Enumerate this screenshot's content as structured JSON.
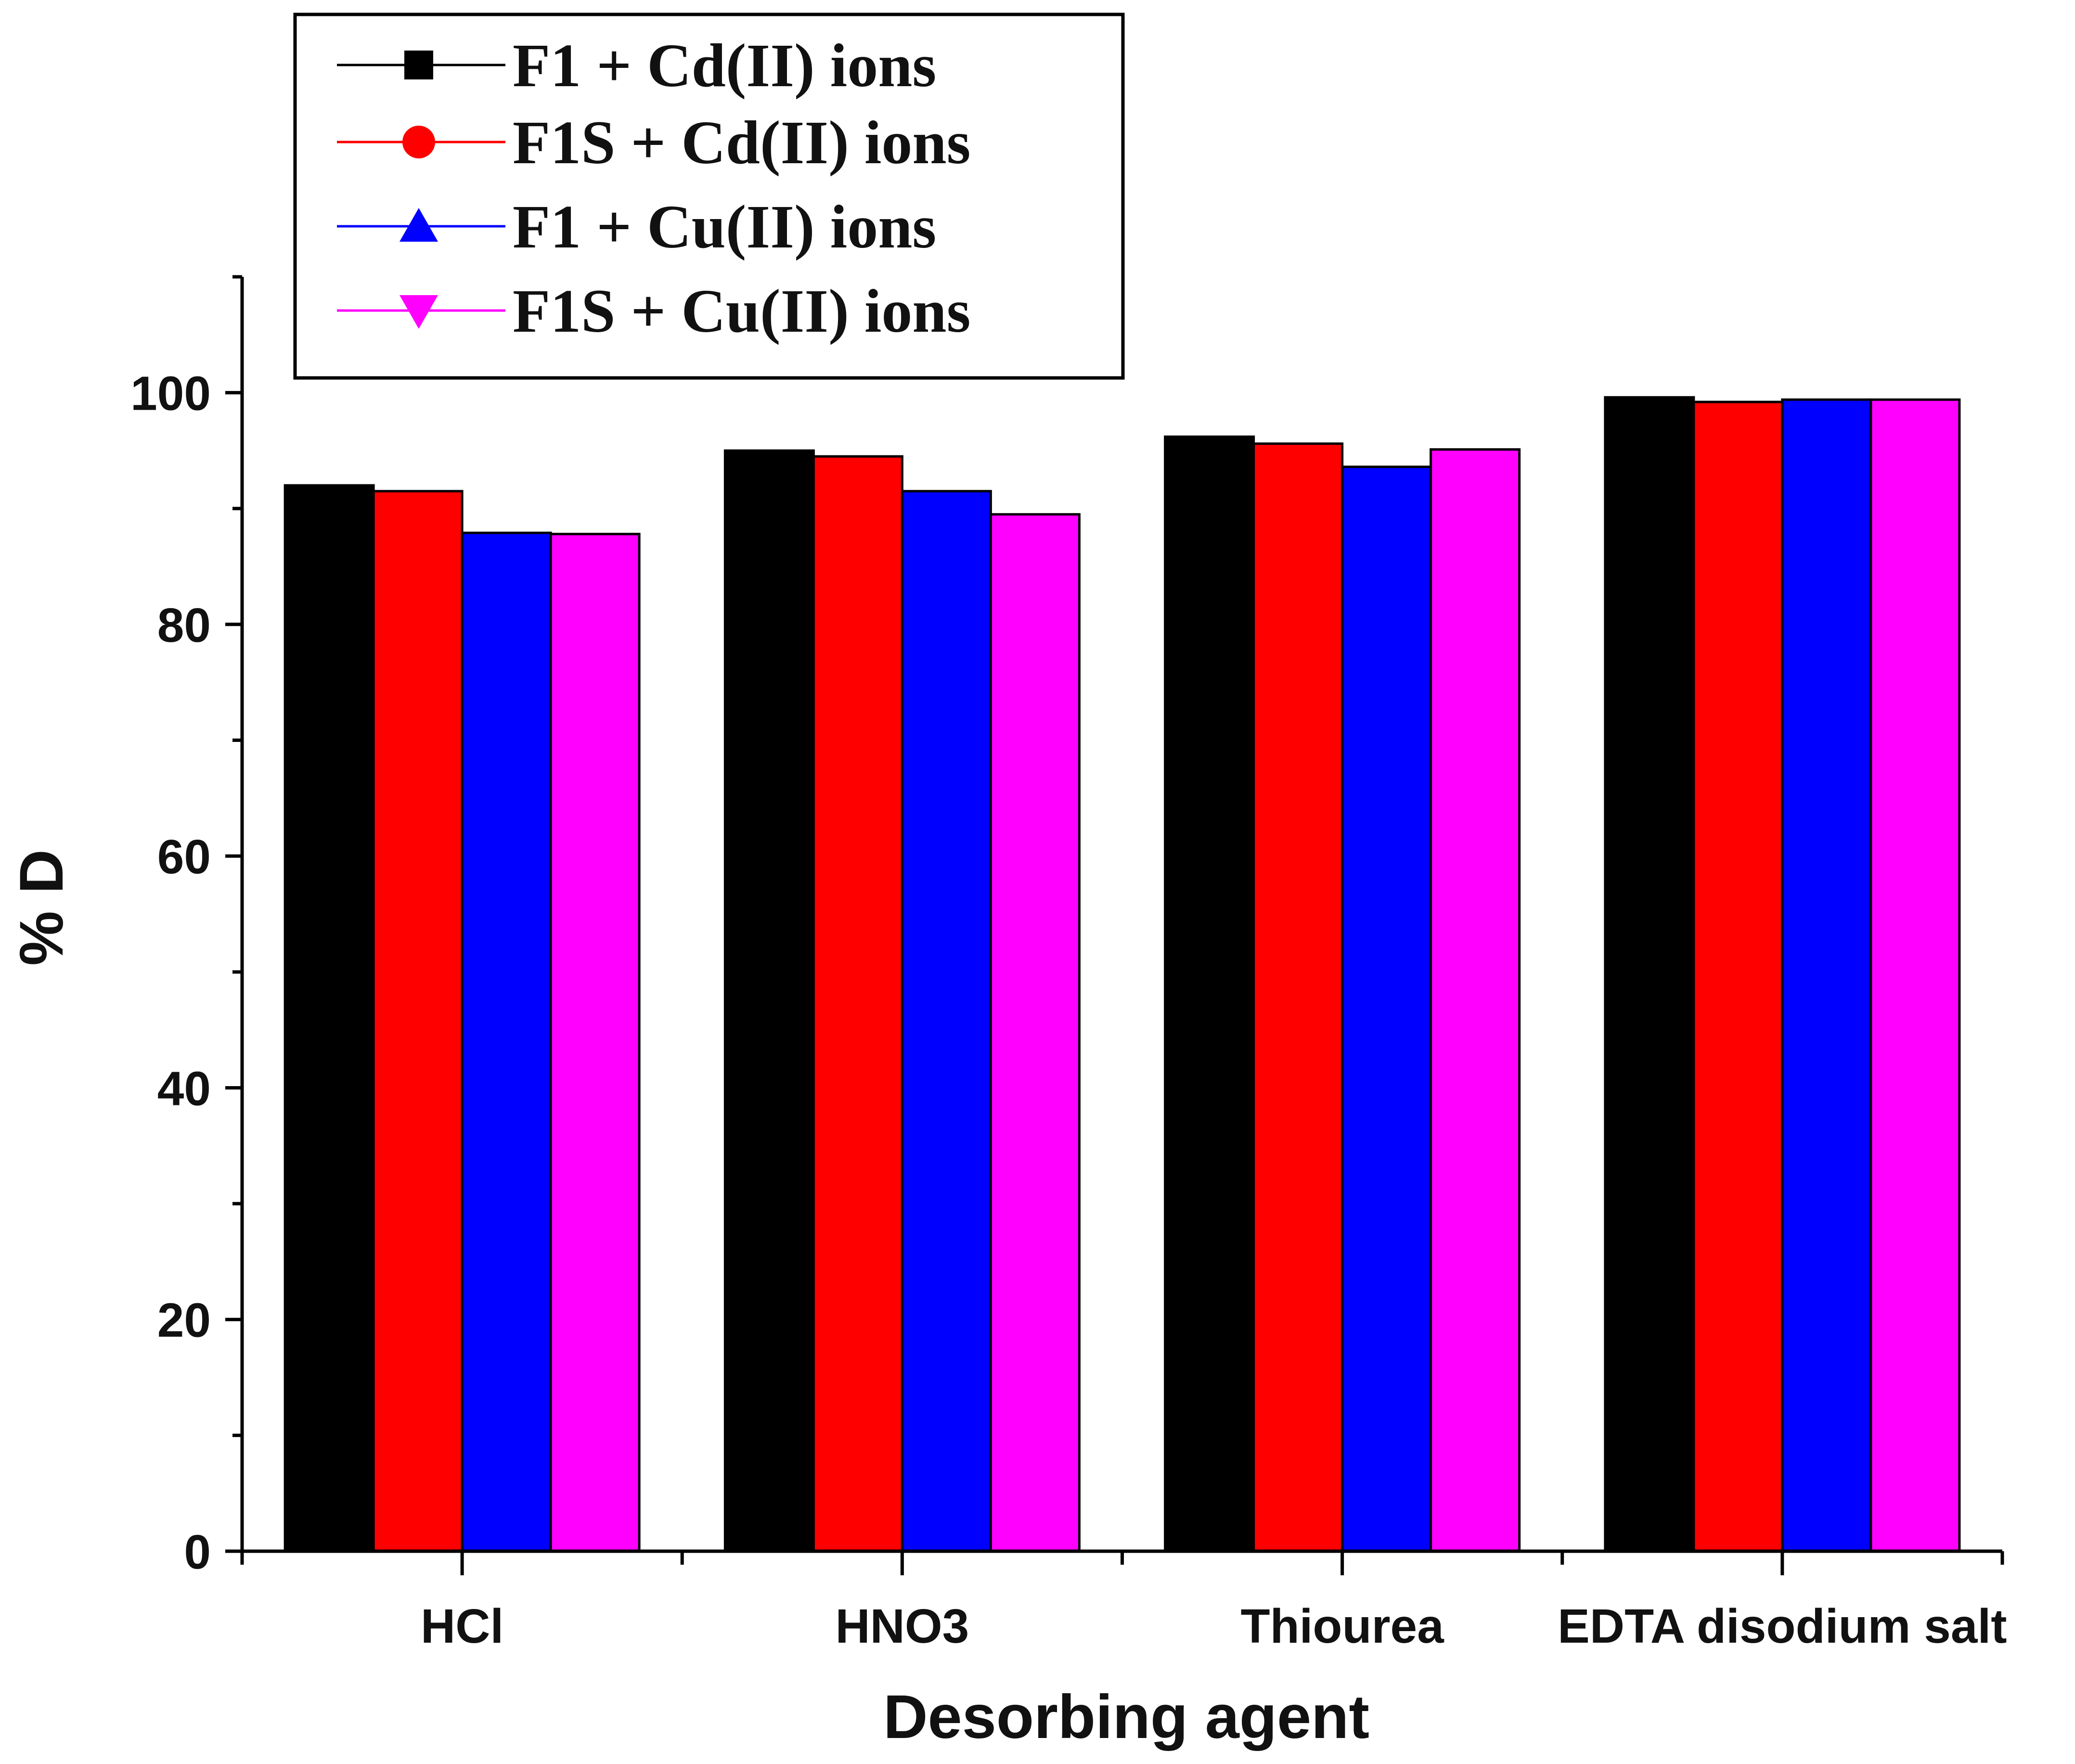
{
  "chart_data": {
    "type": "bar",
    "title": "",
    "xlabel": "Desorbing agent",
    "ylabel": "% D",
    "ylim": [
      0,
      110
    ],
    "yticks": [
      0,
      20,
      40,
      60,
      80,
      100
    ],
    "grid": false,
    "legend_position": "top-left",
    "categories": [
      "HCl",
      "HNO3",
      "Thiourea",
      "EDTA disodium salt"
    ],
    "series": [
      {
        "name": "F1 + Cd(II) ions",
        "color": "#000000",
        "marker": "square",
        "values": [
          92.0,
          95.0,
          96.2,
          99.6
        ]
      },
      {
        "name": "F1S + Cd(II) ions",
        "color": "#ff0000",
        "marker": "circle",
        "values": [
          91.5,
          94.5,
          95.6,
          99.2
        ]
      },
      {
        "name": "F1 + Cu(II) ions",
        "color": "#0000ff",
        "marker": "triangle-up",
        "values": [
          87.9,
          91.5,
          93.6,
          99.4
        ]
      },
      {
        "name": "F1S + Cu(II) ions",
        "color": "#ff00ff",
        "marker": "triangle-down",
        "values": [
          87.8,
          89.5,
          95.1,
          99.4
        ]
      }
    ]
  }
}
